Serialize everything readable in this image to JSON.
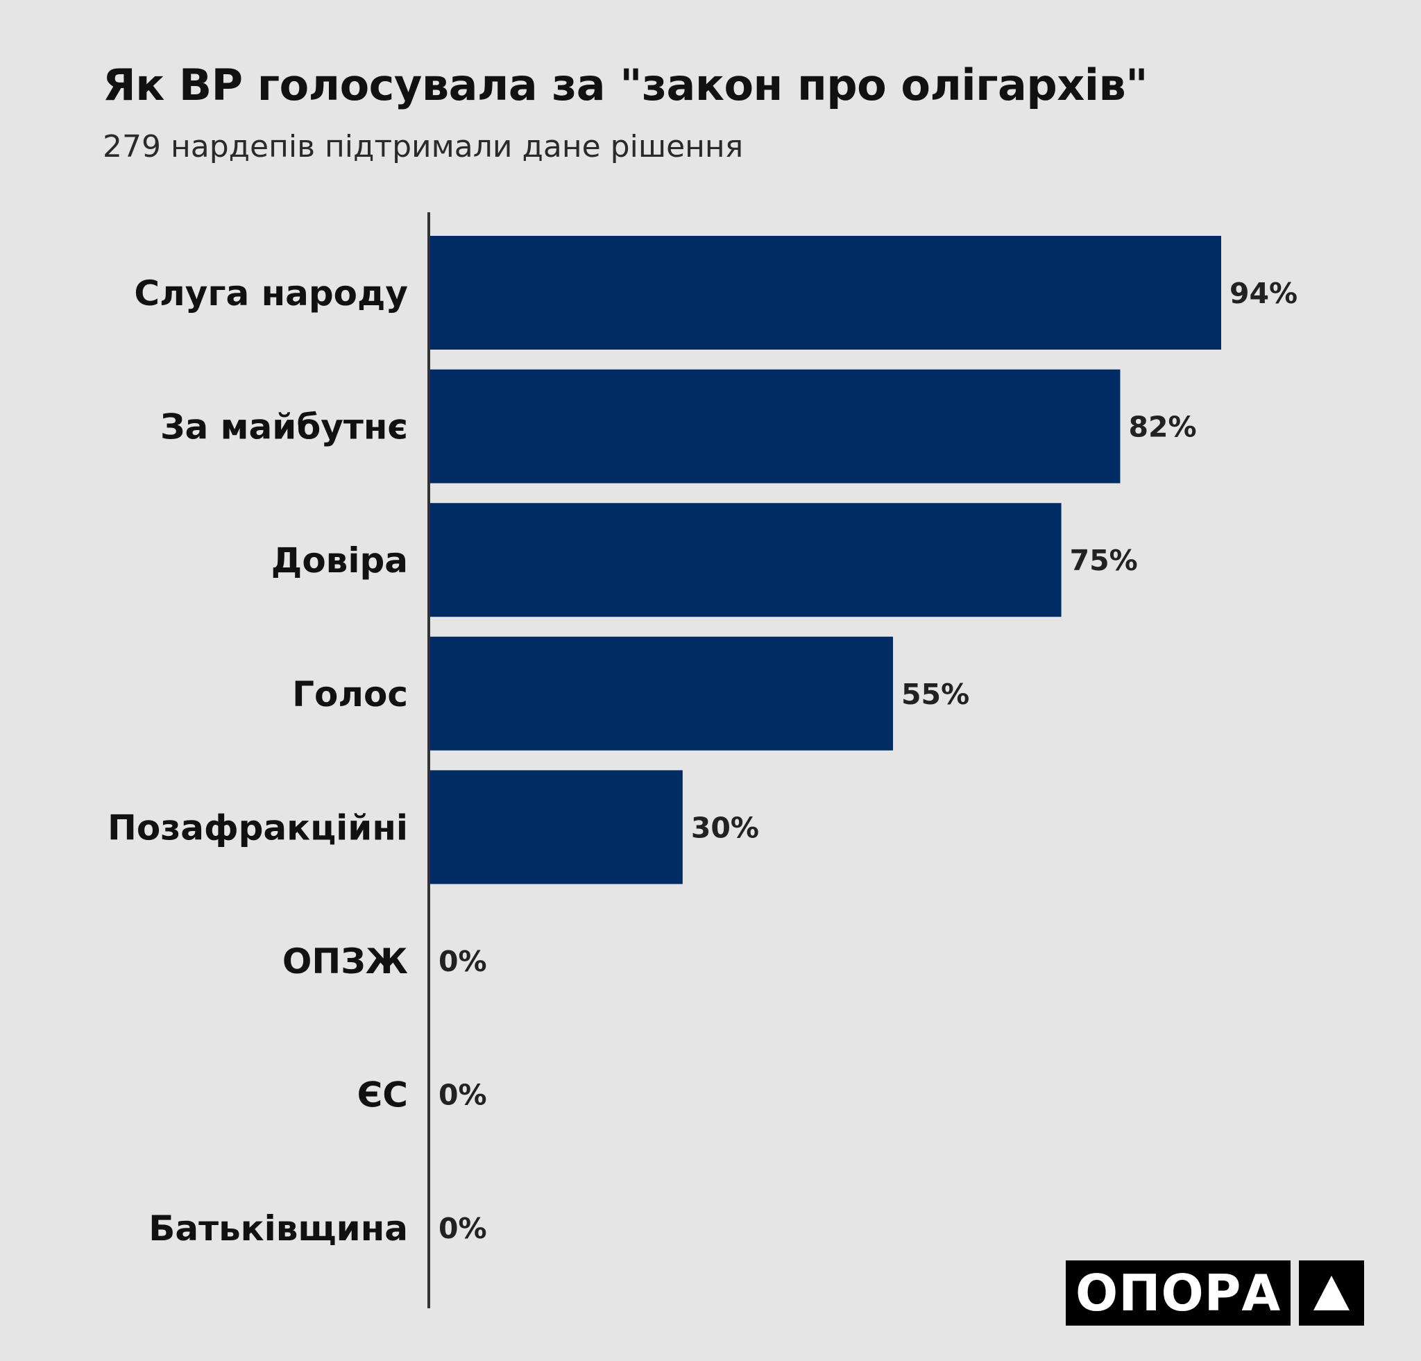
{
  "title": "Як ВР голосувала за \"закон про олігархів\"",
  "subtitle": "279 нардепів підтримали дане рішення",
  "logo": {
    "text": "ОПОРА",
    "mark_icon": "triangle-icon"
  },
  "colors": {
    "background": "#e5e5e5",
    "bar": "#002c63",
    "axis": "#333333"
  },
  "chart_data": {
    "type": "bar",
    "orientation": "horizontal",
    "categories": [
      "Слуга народу",
      "За майбутнє",
      "Довіра",
      "Голос",
      "Позафракційні",
      "ОПЗЖ",
      "ЄС",
      "Батьківщина"
    ],
    "values": [
      94,
      82,
      75,
      55,
      30,
      0,
      0,
      0
    ],
    "value_labels": [
      "94%",
      "82%",
      "75%",
      "55%",
      "30%",
      "0%",
      "0%",
      "0%"
    ],
    "unit": "%",
    "xlim": [
      0,
      100
    ],
    "grid": false,
    "legend": "none"
  }
}
